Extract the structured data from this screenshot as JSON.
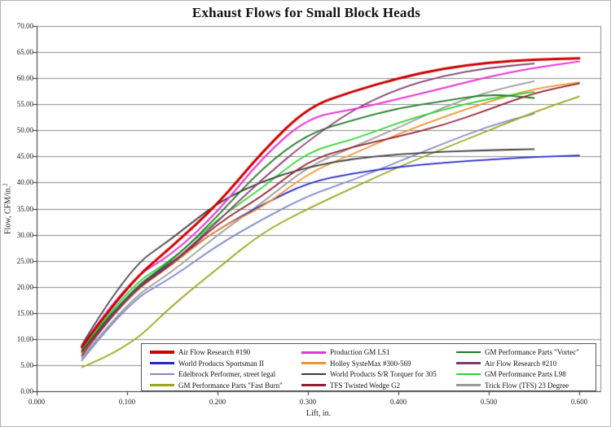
{
  "title": "Exhaust Flows for Small Block Heads",
  "chart_data": {
    "type": "line",
    "title": "Exhaust Flows for Small Block Heads",
    "xlabel": "Lift, in.",
    "ylabel": "Flow, CFM/in.²",
    "ylabel_base": "Flow, CFM/in.",
    "ylabel_sup": "2",
    "xlim": [
      0.0,
      0.623
    ],
    "ylim": [
      0,
      70
    ],
    "grid": "horizontal-only",
    "legend_position": "bottom-inside",
    "x_tick_values": [
      0.0,
      0.1,
      0.2,
      0.3,
      0.4,
      0.5,
      0.6
    ],
    "x_tick_labels": [
      "0.000",
      "0.100",
      "0.200",
      "0.300",
      "0.400",
      "0.500",
      "0.600"
    ],
    "y_tick_values": [
      0,
      5,
      10,
      15,
      20,
      25,
      30,
      35,
      40,
      45,
      50,
      55,
      60,
      65,
      70
    ],
    "y_tick_labels": [
      "0.00",
      "5.00",
      "10.00",
      "15.00",
      "20.00",
      "25.00",
      "30.00",
      "35.00",
      "40.00",
      "45.00",
      "50.00",
      "55.00",
      "60.00",
      "65.00",
      "70.00"
    ],
    "categories": [
      0.05,
      0.1,
      0.15,
      0.2,
      0.25,
      0.3,
      0.35,
      0.4,
      0.45,
      0.5,
      0.55,
      0.6
    ],
    "series": [
      {
        "name": "Air Flow Research #190",
        "color": "#cc0000",
        "line_width": 3,
        "values": [
          8.5,
          20.3,
          27.8,
          35.8,
          46.0,
          54.5,
          57.5,
          60.0,
          61.9,
          63.0,
          63.6,
          63.8
        ]
      },
      {
        "name": "World Products Sportsman II",
        "color": "#2626c9",
        "line_width": 1.8,
        "values": [
          8.2,
          18.7,
          24.8,
          31.0,
          35.8,
          40.0,
          41.8,
          43.0,
          43.8,
          44.4,
          44.9,
          45.2
        ]
      },
      {
        "name": "Edelbrock Performer, street legal",
        "color": "#8089c4",
        "line_width": 1.8,
        "values": [
          5.9,
          16.9,
          21.8,
          28.0,
          33.0,
          37.5,
          40.5,
          44.0,
          47.5,
          50.8,
          53.2,
          null
        ]
      },
      {
        "name": "GM Performance Parts \"Fast Burn\"",
        "color": "#9aa41c",
        "line_width": 1.8,
        "values": [
          4.6,
          8.1,
          16.5,
          23.5,
          30.5,
          35.0,
          39.0,
          43.0,
          46.5,
          50.0,
          53.5,
          56.5
        ]
      },
      {
        "name": "Production GM LS1",
        "color": "#e833d6",
        "line_width": 2,
        "values": [
          8.7,
          21.1,
          26.2,
          34.3,
          44.9,
          52.5,
          54.0,
          56.0,
          58.1,
          60.3,
          62.0,
          63.2
        ]
      },
      {
        "name": "Holley SysteMax #300-569",
        "color": "#f0912d",
        "line_width": 1.8,
        "values": [
          7.2,
          18.2,
          24.2,
          31.2,
          35.2,
          41.8,
          45.5,
          49.3,
          52.6,
          55.5,
          58.0,
          59.2
        ]
      },
      {
        "name": "World Products S/R Torquer for 305",
        "color": "#3c3c3c",
        "line_width": 1.8,
        "values": [
          8.9,
          23.2,
          29.3,
          36.2,
          40.3,
          43.0,
          44.6,
          45.4,
          45.9,
          46.2,
          46.4,
          null
        ]
      },
      {
        "name": "TFS Twisted Wedge G2",
        "color": "#8e2030",
        "line_width": 1.8,
        "values": [
          7.5,
          18.4,
          24.3,
          32.2,
          37.4,
          44.2,
          46.9,
          48.8,
          51.0,
          54.0,
          57.2,
          59.0
        ]
      },
      {
        "name": "GM Performance Parts \"Vortec\"",
        "color": "#1f7a28",
        "line_width": 1.8,
        "values": [
          7.7,
          18.9,
          25.0,
          33.5,
          42.9,
          49.4,
          52.0,
          54.3,
          55.6,
          57.0,
          56.2,
          null
        ]
      },
      {
        "name": "Air Flow Research #210",
        "color": "#833a6b",
        "line_width": 1.8,
        "values": [
          6.8,
          18.5,
          24.5,
          32.5,
          40.8,
          48.0,
          54.0,
          58.0,
          60.5,
          62.0,
          62.8,
          null
        ]
      },
      {
        "name": "GM Performance Parts L98",
        "color": "#2fd32f",
        "line_width": 1.8,
        "values": [
          7.9,
          19.8,
          25.2,
          33.0,
          39.0,
          46.0,
          48.2,
          51.5,
          54.0,
          56.1,
          57.4,
          null
        ]
      },
      {
        "name": "Trick Flow (TFS) 23 Degree",
        "color": "#9a9a9a",
        "line_width": 1.8,
        "values": [
          6.4,
          17.2,
          22.9,
          30.0,
          36.2,
          43.1,
          46.8,
          50.5,
          54.5,
          57.5,
          59.4,
          null
        ]
      }
    ]
  }
}
